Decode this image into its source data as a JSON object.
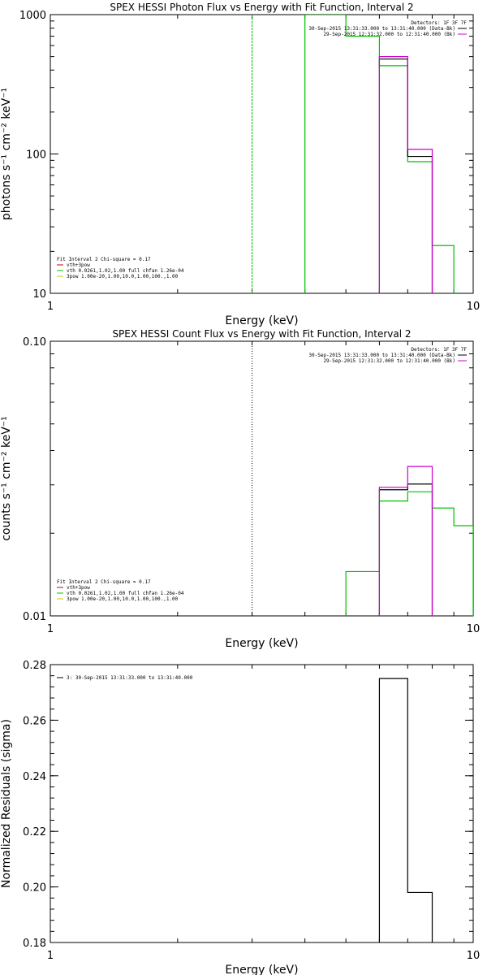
{
  "chart_data": [
    {
      "type": "line",
      "title": "SPEX HESSI Photon Flux vs Energy with Fit Function, Interval 2",
      "xlabel": "Energy (keV)",
      "ylabel": "photons s⁻¹ cm⁻² keV⁻¹",
      "xscale": "log",
      "yscale": "log",
      "xlim": [
        1,
        10
      ],
      "ylim": [
        10,
        1000
      ],
      "xticks": [
        {
          "v": 1,
          "label": "1"
        },
        {
          "v": 10,
          "label": "10"
        }
      ],
      "yticks": [
        {
          "v": 10,
          "label": "10"
        },
        {
          "v": 100,
          "label": "100"
        },
        {
          "v": 1000,
          "label": "1000"
        }
      ],
      "vline": {
        "x": 3.0,
        "color": "#00c000",
        "style": "dashed"
      },
      "header": {
        "detectors": "Detectors: 1F 3F 7F",
        "lines": [
          {
            "text": "30-Sep-2015 13:31:33.000 to 13:31:40.000 (Data-Bk)",
            "color": "#000000"
          },
          {
            "text": "29-Sep-2015 12:31:32.000 to 12:31:40.000 (Bk)",
            "color": "#cc00cc"
          }
        ]
      },
      "legend": {
        "placement": "bottom-left",
        "header": "Fit Interval 2   Chi-square = 0.17",
        "entries": [
          {
            "text": "vth+3pow",
            "color": "#cc0000"
          },
          {
            "text": "vth 0.0261,1.02,1.00  full chfan 1.26e-04",
            "color": "#00c000"
          },
          {
            "text": "3pow 1.00e-20,1.00,10.0,1.00,100.,1.00",
            "color": "#cccc00"
          }
        ]
      },
      "series": [
        {
          "color": "#00c000",
          "edges": [
            4.0,
            5.0,
            6.0,
            7.0,
            8.0,
            9.0
          ],
          "values": [
            1000,
            700,
            430,
            88,
            22
          ]
        },
        {
          "color": "#000000",
          "edges": [
            6.0,
            7.0,
            8.0
          ],
          "values": [
            480,
            96
          ]
        },
        {
          "color": "#cc00cc",
          "edges": [
            6.0,
            7.0,
            8.0
          ],
          "values": [
            500,
            108
          ]
        }
      ]
    },
    {
      "type": "line",
      "title": "SPEX HESSI Count Flux vs Energy with Fit Function, Interval 2",
      "xlabel": "Energy (keV)",
      "ylabel": "counts s⁻¹ cm⁻² keV⁻¹",
      "xscale": "log",
      "yscale": "log",
      "xlim": [
        1,
        10
      ],
      "ylim": [
        0.01,
        0.1
      ],
      "xticks": [
        {
          "v": 1,
          "label": "1"
        },
        {
          "v": 10,
          "label": "10"
        }
      ],
      "yticks": [
        {
          "v": 0.01,
          "label": "0.01"
        },
        {
          "v": 0.1,
          "label": "0.10"
        }
      ],
      "vline": {
        "x": 3.0,
        "color": "#000000",
        "style": "dotted"
      },
      "header": {
        "detectors": "Detectors: 1F 3F 7F",
        "lines": [
          {
            "text": "30-Sep-2015 13:31:33.000 to 13:31:40.000 (Data-Bk)",
            "color": "#000000"
          },
          {
            "text": "29-Sep-2015 12:31:32.000 to 12:31:40.000 (Bk)",
            "color": "#cc00cc"
          }
        ]
      },
      "legend": {
        "placement": "bottom-left",
        "header": "Fit Interval 2   Chi-square = 0.17",
        "entries": [
          {
            "text": "vth+3pow",
            "color": "#cc0000"
          },
          {
            "text": "vth 0.0261,1.02,1.00  full chfan 1.26e-04",
            "color": "#00c000"
          },
          {
            "text": "3pow 1.00e-20,1.00,10.0,1.00,100.,1.00",
            "color": "#cccc00"
          }
        ]
      },
      "series": [
        {
          "color": "#00c000",
          "edges": [
            5.0,
            6.0,
            7.0,
            8.0,
            9.0,
            10.0
          ],
          "values": [
            0.0145,
            0.0262,
            0.0283,
            0.0247,
            0.0213
          ]
        },
        {
          "color": "#000000",
          "edges": [
            6.0,
            7.0,
            8.0
          ],
          "values": [
            0.0288,
            0.0302
          ]
        },
        {
          "color": "#cc00cc",
          "edges": [
            6.0,
            7.0,
            8.0
          ],
          "values": [
            0.0294,
            0.035
          ]
        }
      ]
    },
    {
      "type": "line",
      "title": "",
      "xlabel": "Energy (keV)",
      "ylabel": "Normalized Residuals (sigma)",
      "xscale": "log",
      "yscale": "linear",
      "xlim": [
        1,
        10
      ],
      "ylim": [
        0.18,
        0.28
      ],
      "xticks": [
        {
          "v": 1,
          "label": "1"
        },
        {
          "v": 10,
          "label": "10"
        }
      ],
      "yticks": [
        {
          "v": 0.18,
          "label": "0.18"
        },
        {
          "v": 0.2,
          "label": "0.20"
        },
        {
          "v": 0.22,
          "label": "0.22"
        },
        {
          "v": 0.24,
          "label": "0.24"
        },
        {
          "v": 0.26,
          "label": "0.26"
        },
        {
          "v": 0.28,
          "label": "0.28"
        }
      ],
      "legend": {
        "placement": "top-left",
        "entries": [
          {
            "text": "3: 30-Sep-2015 13:31:33.000 to 13:31:40.000",
            "color": "#000000"
          }
        ]
      },
      "series": [
        {
          "color": "#000000",
          "edges": [
            6.0,
            7.0,
            8.0
          ],
          "values": [
            0.275,
            0.198
          ]
        }
      ]
    }
  ]
}
